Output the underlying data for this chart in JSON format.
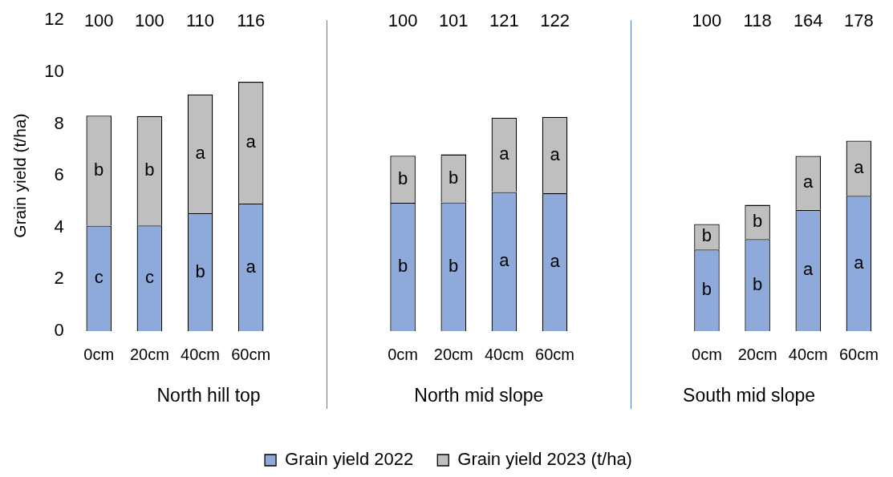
{
  "chart_data": {
    "type": "bar",
    "stacked": true,
    "ylabel": "Grain yield (t/ha)",
    "ylim": [
      0,
      12
    ],
    "yticks": [
      0,
      2,
      4,
      6,
      8,
      10,
      12
    ],
    "grid": false,
    "legend": "bottom",
    "categories": [
      "0cm",
      "20cm",
      "40cm",
      "60cm",
      null,
      null,
      "0cm",
      "20cm",
      "40cm",
      "60cm",
      null,
      null,
      "0cm",
      "20cm",
      "40cm",
      "60cm"
    ],
    "series": [
      {
        "name": "Grain yield 2022",
        "color": "#8eaadb",
        "values": [
          4.07,
          4.08,
          4.55,
          4.92,
          null,
          null,
          4.95,
          4.97,
          5.37,
          5.32,
          null,
          null,
          3.15,
          3.55,
          4.68,
          5.22
        ],
        "value_labels": [
          "c",
          "c",
          "b",
          "a",
          null,
          null,
          "b",
          "b",
          "a",
          "a",
          null,
          null,
          "b",
          "b",
          "a",
          "a"
        ]
      },
      {
        "name": "Grain yield 2023 (t/ha)",
        "color": "#bfbfbf",
        "values": [
          4.25,
          4.22,
          4.58,
          4.7,
          null,
          null,
          1.82,
          1.85,
          2.86,
          2.94,
          null,
          null,
          0.98,
          1.32,
          2.08,
          2.13
        ],
        "value_labels": [
          "b",
          "b",
          "a",
          "a",
          null,
          null,
          "b",
          "b",
          "a",
          "a",
          null,
          null,
          "b",
          "b",
          "a",
          "a"
        ]
      }
    ],
    "annotations": [
      "100",
      "100",
      "110",
      "116",
      "100",
      "101",
      "121",
      "122",
      "100",
      "118",
      "164",
      "178",
      "North hill top",
      "North mid slope",
      "South mid slope"
    ]
  }
}
